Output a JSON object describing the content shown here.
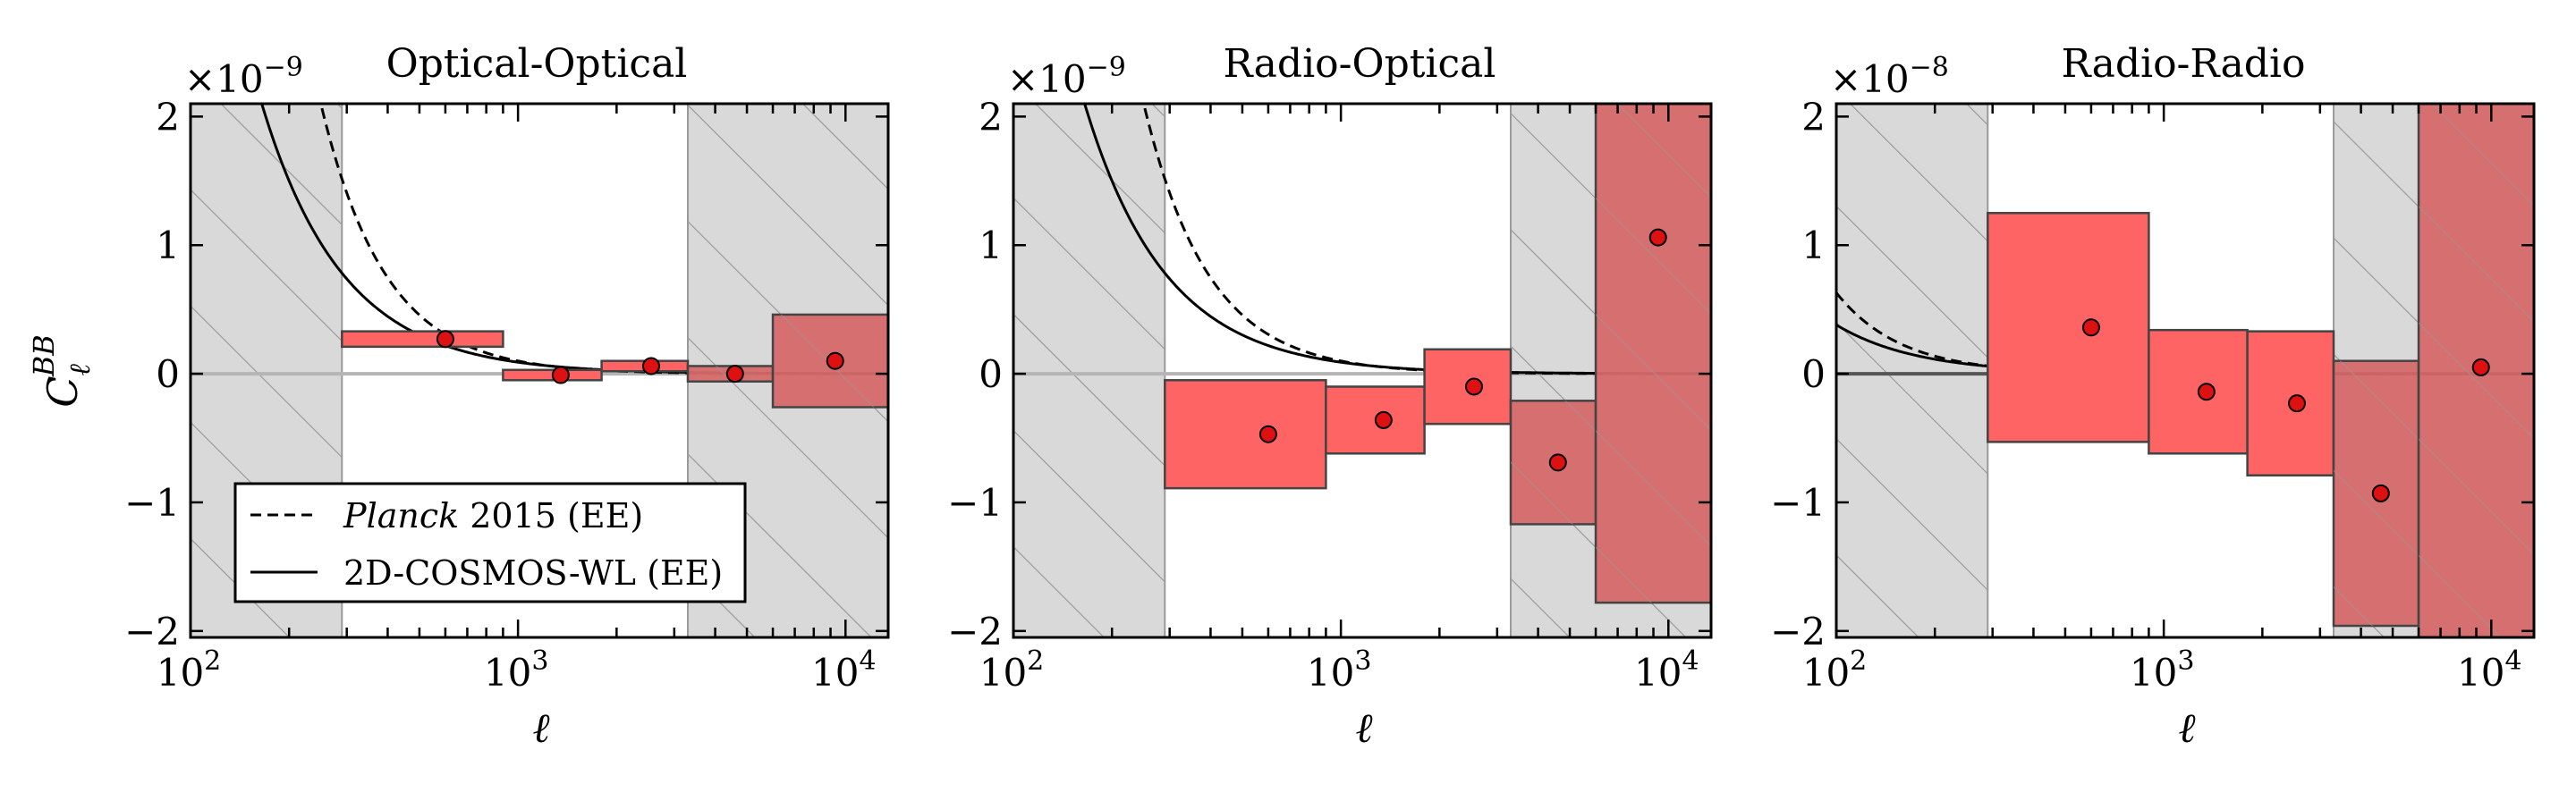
{
  "figure": {
    "shared_xlabel": "ℓ",
    "shared_ylabel_base": "C",
    "shared_ylabel_sub": "ℓ",
    "shared_ylabel_sup": "BB"
  },
  "legend": {
    "entries": [
      {
        "style": "dashed",
        "label_italic": "Planck",
        "label_rest": " 2015 (EE)"
      },
      {
        "style": "solid",
        "label_italic": "",
        "label_rest": "2D-COSMOS-WL (EE)"
      }
    ]
  },
  "colors": {
    "box_fill": "#ff6464",
    "box_fill_hatched": "#d66a6a",
    "box_edge": "#444444",
    "point_fill": "#dd1111",
    "excluded_fill": "#d9d9d9",
    "hatch": "#9a9a9a",
    "zero_line": "#b5b5b5"
  },
  "chart_data": [
    {
      "type": "bar",
      "title": "Optical-Optical",
      "scale_label": "×10",
      "scale_exp": "−9",
      "xlabel": "ℓ",
      "ylabel": "C_ℓ^BB",
      "xscale": "log",
      "xlim": [
        100,
        13500
      ],
      "ylim": [
        -2.05,
        2.1
      ],
      "yticks": [
        -2,
        -1,
        0,
        1,
        2
      ],
      "ytick_labels": [
        "−2",
        "−1",
        "0",
        "1",
        "2"
      ],
      "xticks": [
        100,
        1000,
        10000
      ],
      "xtick_labels": [
        "10",
        "10",
        "10"
      ],
      "xtick_exps": [
        "2",
        "3",
        "4"
      ],
      "excluded_ranges": [
        [
          100,
          290
        ],
        [
          3300,
          13500
        ]
      ],
      "zero_line_color": "#b5b5b5",
      "bins": [
        {
          "lmin": 290,
          "lmax": 900,
          "value": 0.27,
          "err": 0.06
        },
        {
          "lmin": 900,
          "lmax": 1800,
          "value": -0.01,
          "err": 0.04
        },
        {
          "lmin": 1800,
          "lmax": 3300,
          "value": 0.06,
          "err": 0.04
        },
        {
          "lmin": 3300,
          "lmax": 6000,
          "value": 0.0,
          "err": 0.06
        },
        {
          "lmin": 6000,
          "lmax": 13500,
          "value": 0.1,
          "err": 0.36
        }
      ],
      "points_l": [
        600,
        1350,
        2550,
        4600,
        9300
      ],
      "curves": [
        {
          "name": "Planck 2015 (EE)",
          "style": "dashed",
          "amp": 2.1,
          "l0": 250,
          "p": 2.2
        },
        {
          "name": "2D-COSMOS-WL (EE)",
          "style": "solid",
          "amp": 2.1,
          "l0": 165,
          "p": 1.75
        }
      ],
      "legend_position": "lower-left"
    },
    {
      "type": "bar",
      "title": "Radio-Optical",
      "scale_label": "×10",
      "scale_exp": "−9",
      "xlabel": "ℓ",
      "ylabel": "C_ℓ^BB",
      "xscale": "log",
      "xlim": [
        100,
        13500
      ],
      "ylim": [
        -2.05,
        2.1
      ],
      "yticks": [
        -2,
        -1,
        0,
        1,
        2
      ],
      "ytick_labels": [
        "−2",
        "−1",
        "0",
        "1",
        "2"
      ],
      "xticks": [
        100,
        1000,
        10000
      ],
      "xtick_labels": [
        "10",
        "10",
        "10"
      ],
      "xtick_exps": [
        "2",
        "3",
        "4"
      ],
      "excluded_ranges": [
        [
          100,
          290
        ],
        [
          3300,
          13500
        ]
      ],
      "zero_line_color": "#b5b5b5",
      "bins": [
        {
          "lmin": 290,
          "lmax": 900,
          "value": -0.47,
          "err": 0.42
        },
        {
          "lmin": 900,
          "lmax": 1800,
          "value": -0.36,
          "err": 0.26
        },
        {
          "lmin": 1800,
          "lmax": 3300,
          "value": -0.1,
          "err": 0.29
        },
        {
          "lmin": 3300,
          "lmax": 6000,
          "value": -0.69,
          "err": 0.48
        },
        {
          "lmin": 6000,
          "lmax": 13500,
          "value": 1.06,
          "err": 2.84
        }
      ],
      "points_l": [
        600,
        1350,
        2550,
        4600,
        9300
      ],
      "curves": [
        {
          "name": "Planck 2015 (EE)",
          "style": "dashed",
          "amp": 2.1,
          "l0": 250,
          "p": 2.2
        },
        {
          "name": "2D-COSMOS-WL (EE)",
          "style": "solid",
          "amp": 2.1,
          "l0": 165,
          "p": 1.75
        }
      ],
      "legend_position": ""
    },
    {
      "type": "bar",
      "title": "Radio-Radio",
      "scale_label": "×10",
      "scale_exp": "−8",
      "xlabel": "ℓ",
      "ylabel": "C_ℓ^BB",
      "xscale": "log",
      "xlim": [
        100,
        13500
      ],
      "ylim": [
        -2.05,
        2.1
      ],
      "yticks": [
        -2,
        -1,
        0,
        1,
        2
      ],
      "ytick_labels": [
        "−2",
        "−1",
        "0",
        "1",
        "2"
      ],
      "xticks": [
        100,
        1000,
        10000
      ],
      "xtick_labels": [
        "10",
        "10",
        "10"
      ],
      "xtick_exps": [
        "2",
        "3",
        "4"
      ],
      "excluded_ranges": [
        [
          100,
          290
        ],
        [
          3300,
          13500
        ]
      ],
      "zero_line_color": "#555555",
      "bins": [
        {
          "lmin": 290,
          "lmax": 900,
          "value": 0.36,
          "err": 0.89
        },
        {
          "lmin": 900,
          "lmax": 1800,
          "value": -0.14,
          "err": 0.48
        },
        {
          "lmin": 1800,
          "lmax": 3300,
          "value": -0.23,
          "err": 0.56
        },
        {
          "lmin": 3300,
          "lmax": 6000,
          "value": -0.93,
          "err": 1.03
        },
        {
          "lmin": 6000,
          "lmax": 13500,
          "value": 0.05,
          "err": 3.0
        }
      ],
      "points_l": [
        600,
        1350,
        2550,
        4600,
        9300
      ],
      "curves": [
        {
          "name": "Planck 2015 (EE)",
          "style": "dashed",
          "amp": 0.63,
          "l0": 100,
          "p": 2.2
        },
        {
          "name": "2D-COSMOS-WL (EE)",
          "style": "solid",
          "amp": 0.38,
          "l0": 100,
          "p": 1.75
        }
      ],
      "legend_position": ""
    }
  ]
}
